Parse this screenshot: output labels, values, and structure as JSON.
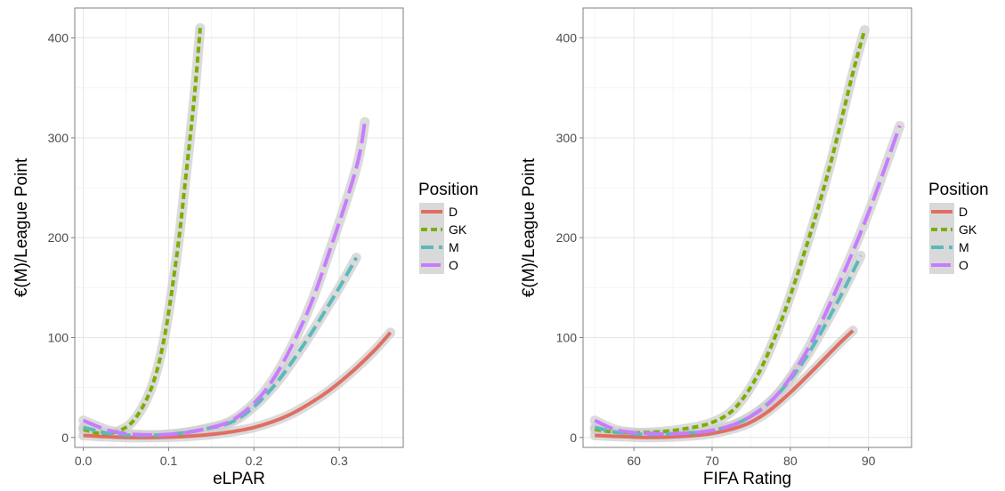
{
  "chart_data": [
    {
      "type": "line",
      "xlabel": "eLPAR",
      "ylabel": "€(M)/League Point",
      "xlim": [
        -0.01,
        0.375
      ],
      "ylim": [
        -10,
        430
      ],
      "xticks": [
        0.0,
        0.1,
        0.2,
        0.3
      ],
      "xtick_labels": [
        "0.0",
        "0.1",
        "0.2",
        "0.3"
      ],
      "yticks": [
        0,
        100,
        200,
        300,
        400
      ],
      "ytick_labels": [
        "0",
        "100",
        "200",
        "300",
        "400"
      ],
      "grid": true,
      "legend": {
        "title": "Position",
        "placement": "right"
      },
      "series": [
        {
          "name": "D",
          "color": "#E06E63",
          "dash": "solid",
          "x": [
            0.0,
            0.02,
            0.05,
            0.08,
            0.12,
            0.16,
            0.2,
            0.24,
            0.28,
            0.31,
            0.34,
            0.36
          ],
          "y": [
            2,
            1,
            0,
            0,
            1,
            4,
            10,
            22,
            42,
            62,
            86,
            105
          ]
        },
        {
          "name": "GK",
          "color": "#7CAE00",
          "dash": "short",
          "x": [
            0.0,
            0.02,
            0.04,
            0.06,
            0.08,
            0.095,
            0.11,
            0.12,
            0.13,
            0.137
          ],
          "y": [
            8,
            4,
            6,
            18,
            50,
            100,
            185,
            260,
            340,
            410
          ]
        },
        {
          "name": "M",
          "color": "#5CB9BB",
          "dash": "medium",
          "x": [
            0.0,
            0.03,
            0.06,
            0.1,
            0.14,
            0.18,
            0.22,
            0.26,
            0.3,
            0.32
          ],
          "y": [
            10,
            4,
            2,
            3,
            8,
            18,
            48,
            95,
            150,
            180
          ]
        },
        {
          "name": "O",
          "color": "#C77CFF",
          "dash": "long",
          "x": [
            0.0,
            0.03,
            0.06,
            0.1,
            0.14,
            0.18,
            0.22,
            0.26,
            0.29,
            0.32,
            0.33
          ],
          "y": [
            17,
            7,
            3,
            3,
            8,
            20,
            55,
            120,
            190,
            270,
            316
          ]
        }
      ]
    },
    {
      "type": "line",
      "xlabel": "FIFA Rating",
      "ylabel": "€(M)/League Point",
      "xlim": [
        53.5,
        95.5
      ],
      "ylim": [
        -10,
        430
      ],
      "xticks": [
        60,
        70,
        80,
        90
      ],
      "xtick_labels": [
        "60",
        "70",
        "80",
        "90"
      ],
      "yticks": [
        0,
        100,
        200,
        300,
        400
      ],
      "ytick_labels": [
        "0",
        "100",
        "200",
        "300",
        "400"
      ],
      "grid": true,
      "legend": {
        "title": "Position",
        "placement": "right"
      },
      "series": [
        {
          "name": "D",
          "color": "#E06E63",
          "dash": "solid",
          "x": [
            55,
            58,
            62,
            66,
            70,
            74,
            77,
            80,
            83,
            86,
            88
          ],
          "y": [
            2,
            1,
            0,
            1,
            4,
            12,
            25,
            45,
            68,
            92,
            107
          ]
        },
        {
          "name": "GK",
          "color": "#7CAE00",
          "dash": "short",
          "x": [
            55,
            58,
            62,
            66,
            70,
            73,
            76,
            79,
            82,
            85,
            88,
            89.5
          ],
          "y": [
            8,
            5,
            5,
            8,
            15,
            30,
            65,
            120,
            190,
            270,
            365,
            408
          ]
        },
        {
          "name": "M",
          "color": "#5CB9BB",
          "dash": "medium",
          "x": [
            55,
            58,
            62,
            66,
            70,
            74,
            78,
            82,
            86,
            89
          ],
          "y": [
            10,
            5,
            3,
            4,
            7,
            17,
            40,
            80,
            135,
            182
          ]
        },
        {
          "name": "O",
          "color": "#C77CFF",
          "dash": "long",
          "x": [
            55,
            58,
            62,
            66,
            70,
            74,
            78,
            82,
            86,
            90,
            94
          ],
          "y": [
            17,
            7,
            4,
            4,
            7,
            17,
            40,
            85,
            150,
            225,
            312
          ]
        }
      ]
    }
  ]
}
